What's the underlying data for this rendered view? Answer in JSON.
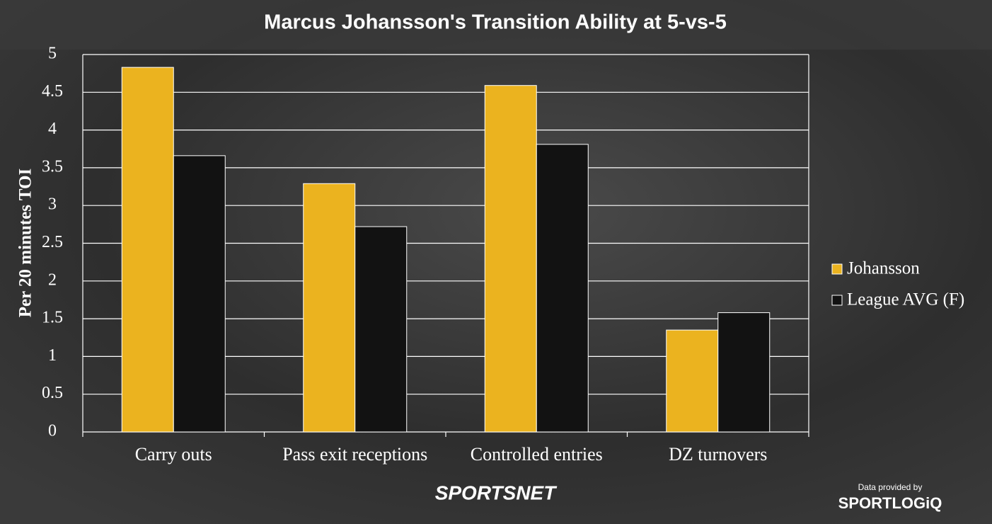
{
  "chart_data": {
    "type": "bar",
    "title": "Marcus Johansson's Transition Ability at 5-vs-5",
    "y_label": "Per 20 minutes TOI",
    "categories": [
      "Carry outs",
      "Pass exit receptions",
      "Controlled entries",
      "DZ turnovers"
    ],
    "series": [
      {
        "name": "Johansson",
        "color": "#ebb31f",
        "values": [
          4.83,
          3.29,
          4.59,
          1.35
        ]
      },
      {
        "name": "League AVG (F)",
        "color": "#121212",
        "values": [
          3.66,
          2.72,
          3.81,
          1.58
        ]
      }
    ],
    "ylim": [
      0,
      5
    ],
    "yticks": [
      0,
      0.5,
      1,
      1.5,
      2,
      2.5,
      3,
      3.5,
      4,
      4.5,
      5
    ],
    "grid": true,
    "legend": "right"
  },
  "branding": {
    "logo": "SPORTSNET",
    "credit": "Data provided by",
    "credit_logo": "SPORTLOGiQ"
  }
}
